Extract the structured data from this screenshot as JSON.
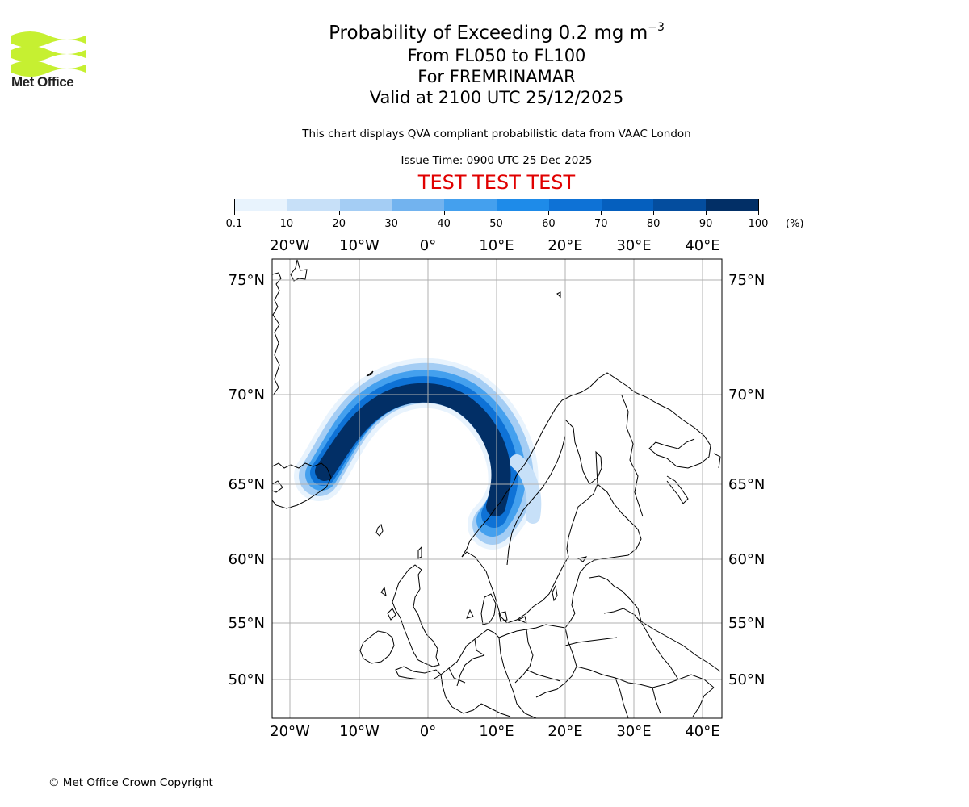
{
  "header": {
    "logo_text": "Met Office",
    "title": "Probability of Exceeding 0.2 mg m",
    "title_exponent": "−3",
    "line2": "From FL050 to FL100",
    "line3": "For FREMRINAMAR",
    "line4": "Valid at 2100 UTC 25/12/2025",
    "description": "This chart displays QVA compliant probabilistic data from VAAC London",
    "issue_time": "Issue Time: 0900 UTC 25 Dec 2025",
    "test_banner": "TEST TEST TEST"
  },
  "colorbar": {
    "unit": "(%)",
    "ticks": [
      "0.1",
      "10",
      "20",
      "30",
      "40",
      "50",
      "60",
      "70",
      "80",
      "90",
      "100"
    ],
    "colors": [
      "#e8f3fd",
      "#c7e0f8",
      "#a4cdf4",
      "#72b3ef",
      "#44a0ee",
      "#1e8be9",
      "#0e72d6",
      "#055fbe",
      "#044d9e",
      "#022f66"
    ]
  },
  "map": {
    "lon_labels": [
      "20°W",
      "10°W",
      "0°",
      "10°E",
      "20°E",
      "30°E",
      "40°E"
    ],
    "lat_labels": [
      "75°N",
      "70°N",
      "65°N",
      "60°N",
      "55°N",
      "50°N"
    ]
  },
  "footer": {
    "copyright": "© Met Office Crown Copyright"
  }
}
